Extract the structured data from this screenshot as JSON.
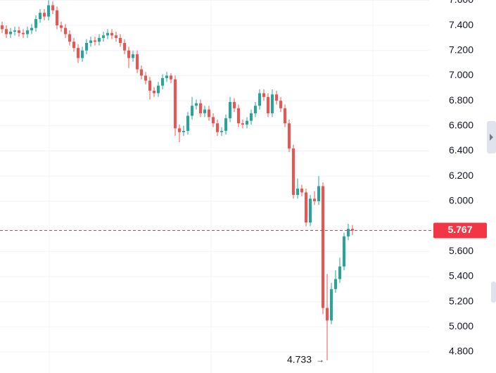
{
  "chart_data": {
    "type": "candlestick",
    "ylim": [
      4.632,
      7.602
    ],
    "yticks": [
      {
        "value": 7.6,
        "label": "7.600"
      },
      {
        "value": 7.4,
        "label": "7.400"
      },
      {
        "value": 7.2,
        "label": "7.200"
      },
      {
        "value": 7.0,
        "label": "7.000"
      },
      {
        "value": 6.8,
        "label": "6.800"
      },
      {
        "value": 6.6,
        "label": "6.600"
      },
      {
        "value": 6.4,
        "label": "6.400"
      },
      {
        "value": 6.2,
        "label": "6.200"
      },
      {
        "value": 6.0,
        "label": "6.000"
      },
      {
        "value": 5.6,
        "label": "5.600"
      },
      {
        "value": 5.4,
        "label": "5.400"
      },
      {
        "value": 5.2,
        "label": "5.200"
      },
      {
        "value": 5.0,
        "label": "5.000"
      },
      {
        "value": 4.8,
        "label": "4.800"
      }
    ],
    "grid": true,
    "up_color": "#26a69a",
    "down_color": "#ef5350",
    "price_line_color": "#f23645",
    "last_price": 5.767,
    "min_label": 4.733,
    "open": [
      7.4,
      7.37,
      7.33,
      7.35,
      7.36,
      7.34,
      7.33,
      7.36,
      7.38,
      7.45,
      7.5,
      7.47,
      7.56,
      7.52,
      7.4,
      7.38,
      7.33,
      7.27,
      7.22,
      7.14,
      7.2,
      7.26,
      7.28,
      7.27,
      7.3,
      7.32,
      7.34,
      7.32,
      7.3,
      7.26,
      7.2,
      7.14,
      7.17,
      7.05,
      7.0,
      6.96,
      6.88,
      6.86,
      6.92,
      6.98,
      7.0,
      6.97,
      6.58,
      6.55,
      6.56,
      6.68,
      6.76,
      6.78,
      6.7,
      6.73,
      6.67,
      6.62,
      6.55,
      6.56,
      6.66,
      6.79,
      6.74,
      6.62,
      6.61,
      6.64,
      6.7,
      6.76,
      6.86,
      6.83,
      6.7,
      6.85,
      6.8,
      6.74,
      6.62,
      6.42,
      6.05,
      6.1,
      6.07,
      5.83,
      6.02,
      6.0,
      6.12,
      5.15,
      5.05,
      5.3,
      5.38,
      5.48,
      5.72,
      5.78
    ],
    "high": [
      7.43,
      7.4,
      7.38,
      7.39,
      7.39,
      7.37,
      7.39,
      7.41,
      7.48,
      7.53,
      7.53,
      7.6,
      7.59,
      7.55,
      7.43,
      7.41,
      7.36,
      7.3,
      7.25,
      7.23,
      7.29,
      7.31,
      7.31,
      7.33,
      7.35,
      7.37,
      7.37,
      7.35,
      7.33,
      7.29,
      7.23,
      7.2,
      7.2,
      7.08,
      7.03,
      6.99,
      6.91,
      6.95,
      7.01,
      7.03,
      7.02,
      7.0,
      6.61,
      6.6,
      6.71,
      6.83,
      6.81,
      6.81,
      6.76,
      6.76,
      6.7,
      6.65,
      6.59,
      6.69,
      6.83,
      6.82,
      6.77,
      6.65,
      6.67,
      6.73,
      6.79,
      6.89,
      6.89,
      6.86,
      6.89,
      6.88,
      6.83,
      6.77,
      6.65,
      6.45,
      6.18,
      6.13,
      6.1,
      6.05,
      6.08,
      6.2,
      6.15,
      5.42,
      5.35,
      5.45,
      5.55,
      5.75,
      5.82,
      5.81
    ],
    "low": [
      7.34,
      7.3,
      7.3,
      7.32,
      7.31,
      7.3,
      7.3,
      7.33,
      7.35,
      7.42,
      7.44,
      7.44,
      7.49,
      7.37,
      7.35,
      7.3,
      7.24,
      7.19,
      7.1,
      7.11,
      7.17,
      7.23,
      7.24,
      7.24,
      7.27,
      7.29,
      7.29,
      7.27,
      7.23,
      7.17,
      7.06,
      7.11,
      7.02,
      6.97,
      6.93,
      6.81,
      6.83,
      6.83,
      6.89,
      6.95,
      6.94,
      6.52,
      6.47,
      6.52,
      6.53,
      6.65,
      6.73,
      6.67,
      6.67,
      6.64,
      6.59,
      6.52,
      6.52,
      6.53,
      6.63,
      6.71,
      6.59,
      6.58,
      6.58,
      6.61,
      6.67,
      6.73,
      6.8,
      6.67,
      6.67,
      6.77,
      6.71,
      6.59,
      6.39,
      6.02,
      6.02,
      6.04,
      5.8,
      5.8,
      5.97,
      5.97,
      5.1,
      4.733,
      5.02,
      5.27,
      5.35,
      5.45,
      5.69,
      5.73
    ],
    "close": [
      7.37,
      7.33,
      7.35,
      7.36,
      7.34,
      7.33,
      7.36,
      7.38,
      7.45,
      7.5,
      7.47,
      7.56,
      7.52,
      7.4,
      7.38,
      7.33,
      7.27,
      7.22,
      7.14,
      7.2,
      7.26,
      7.28,
      7.27,
      7.3,
      7.32,
      7.34,
      7.32,
      7.3,
      7.26,
      7.2,
      7.14,
      7.17,
      7.05,
      7.0,
      6.96,
      6.88,
      6.86,
      6.92,
      6.98,
      7.0,
      6.97,
      6.58,
      6.55,
      6.56,
      6.68,
      6.76,
      6.78,
      6.7,
      6.73,
      6.67,
      6.62,
      6.55,
      6.56,
      6.66,
      6.79,
      6.74,
      6.62,
      6.61,
      6.64,
      6.7,
      6.76,
      6.86,
      6.83,
      6.7,
      6.85,
      6.8,
      6.74,
      6.62,
      6.42,
      6.05,
      6.1,
      6.07,
      5.83,
      6.02,
      6.0,
      6.12,
      5.15,
      5.05,
      5.3,
      5.38,
      5.48,
      5.72,
      5.78,
      5.767
    ]
  }
}
